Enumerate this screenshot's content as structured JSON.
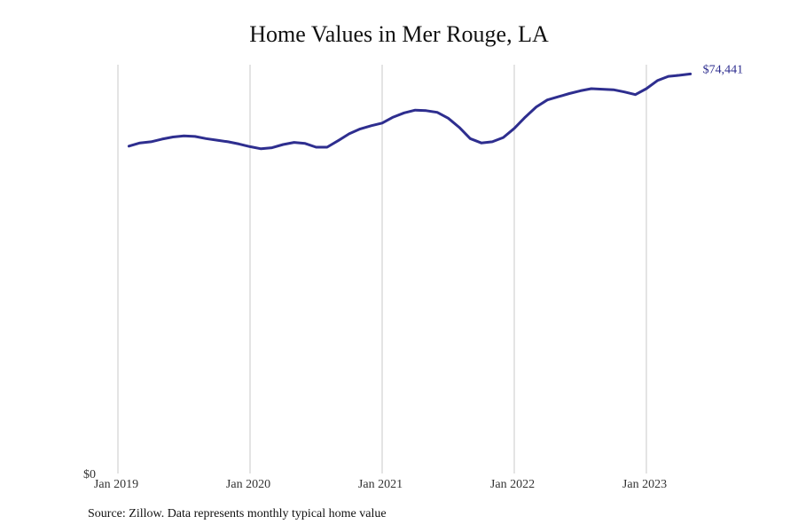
{
  "chart_data": {
    "type": "line",
    "title": "Home Values in Mer Rouge, LA",
    "xlabel": "",
    "ylabel": "",
    "x_start": "2019-02",
    "x_ticks": [
      {
        "label": "Jan 2019",
        "value": 2019.0
      },
      {
        "label": "Jan 2020",
        "value": 2020.0
      },
      {
        "label": "Jan 2021",
        "value": 2021.0
      },
      {
        "label": "Jan 2022",
        "value": 2022.0
      },
      {
        "label": "Jan 2023",
        "value": 2023.0
      }
    ],
    "xlim": [
      2019.0,
      2024.0
    ],
    "y_tick_label": "$0",
    "ylim": [
      0,
      76000
    ],
    "end_label": "$74,441",
    "grid": "vertical",
    "line_color": "#2e2e8f",
    "series": [
      {
        "values": [
          61000,
          61600,
          61800,
          62300,
          62700,
          62900,
          62800,
          62400,
          62100,
          61800,
          61400,
          60900,
          60500,
          60700,
          61300,
          61700,
          61500,
          60800,
          60800,
          62000,
          63300,
          64200,
          64800,
          65300,
          66400,
          67200,
          67700,
          67600,
          67300,
          66200,
          64500,
          62400,
          61600,
          61800,
          62600,
          64300,
          66400,
          68300,
          69600,
          70200,
          70800,
          71300,
          71700,
          71600,
          71500,
          71100,
          70600,
          71700,
          73200,
          74000,
          74200,
          74441
        ]
      }
    ]
  },
  "source_note": "Source: Zillow. Data represents monthly typical home value"
}
